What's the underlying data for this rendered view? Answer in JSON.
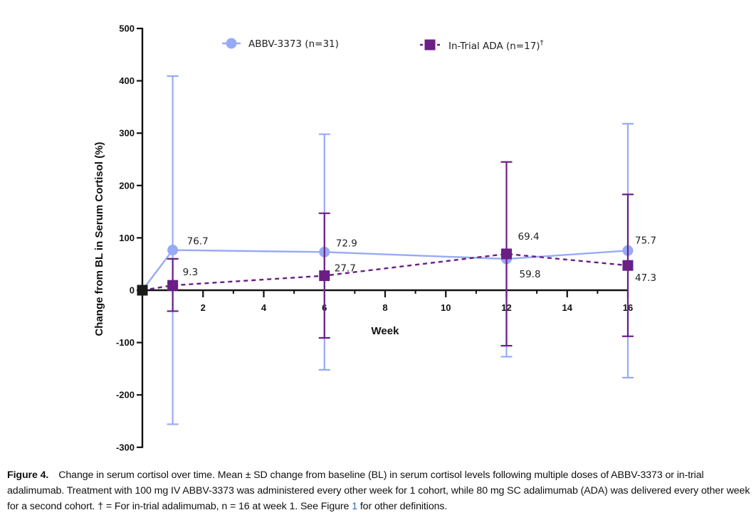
{
  "chart_data": {
    "type": "line",
    "xlabel": "Week",
    "ylabel": "Change from BL in Serum Cortisol (%)",
    "xlim": [
      0,
      16
    ],
    "ylim": [
      -300,
      500
    ],
    "x_ticks": [
      "2",
      "4",
      "6",
      "8",
      "10",
      "12",
      "14",
      "16"
    ],
    "y_ticks": [
      "500",
      "400",
      "300",
      "200",
      "100",
      "0",
      "-100",
      "-200",
      "-300"
    ],
    "legend_position": "top",
    "series": [
      {
        "name": "ABBV-3373 (n=31)",
        "color": "#97aaf5",
        "marker": "circle",
        "line_style": "solid",
        "x": [
          0,
          1,
          6,
          12,
          16
        ],
        "values": [
          0,
          76.7,
          72.9,
          59.8,
          75.7
        ],
        "sd_upper": [
          null,
          409,
          298,
          null,
          318
        ],
        "sd_lower": [
          null,
          -256,
          -152,
          -127,
          -167
        ],
        "labels": [
          "",
          "76.7",
          "72.9",
          "59.8",
          "75.7"
        ]
      },
      {
        "name": "In-Trial ADA (n=17)",
        "name_sup": "†",
        "color": "#6a1e86",
        "marker": "square",
        "line_style": "dashed",
        "x": [
          0,
          1,
          6,
          12,
          16
        ],
        "values": [
          0,
          9.3,
          27.7,
          69.4,
          47.3
        ],
        "sd_upper": [
          null,
          60,
          147,
          245,
          183
        ],
        "sd_lower": [
          null,
          -40,
          -91,
          -106,
          -88
        ],
        "labels": [
          "",
          "9.3",
          "27.7",
          "69.4",
          "47.3"
        ]
      }
    ]
  },
  "caption": {
    "label": "Figure 4.",
    "text_before_link": "Change in serum cortisol over time. Mean ± SD change from baseline (BL) in serum cortisol levels following multiple doses of ABBV-3373 or in-trial adalimumab. Treatment with 100 mg IV ABBV-3373 was administered every other week for 1 cohort, while 80 mg SC adalimumab (ADA) was delivered every other week for a second cohort. † = For in-trial adalimumab, n = 16 at week 1. See Figure ",
    "link_text": "1",
    "text_after_link": " for other definitions."
  }
}
